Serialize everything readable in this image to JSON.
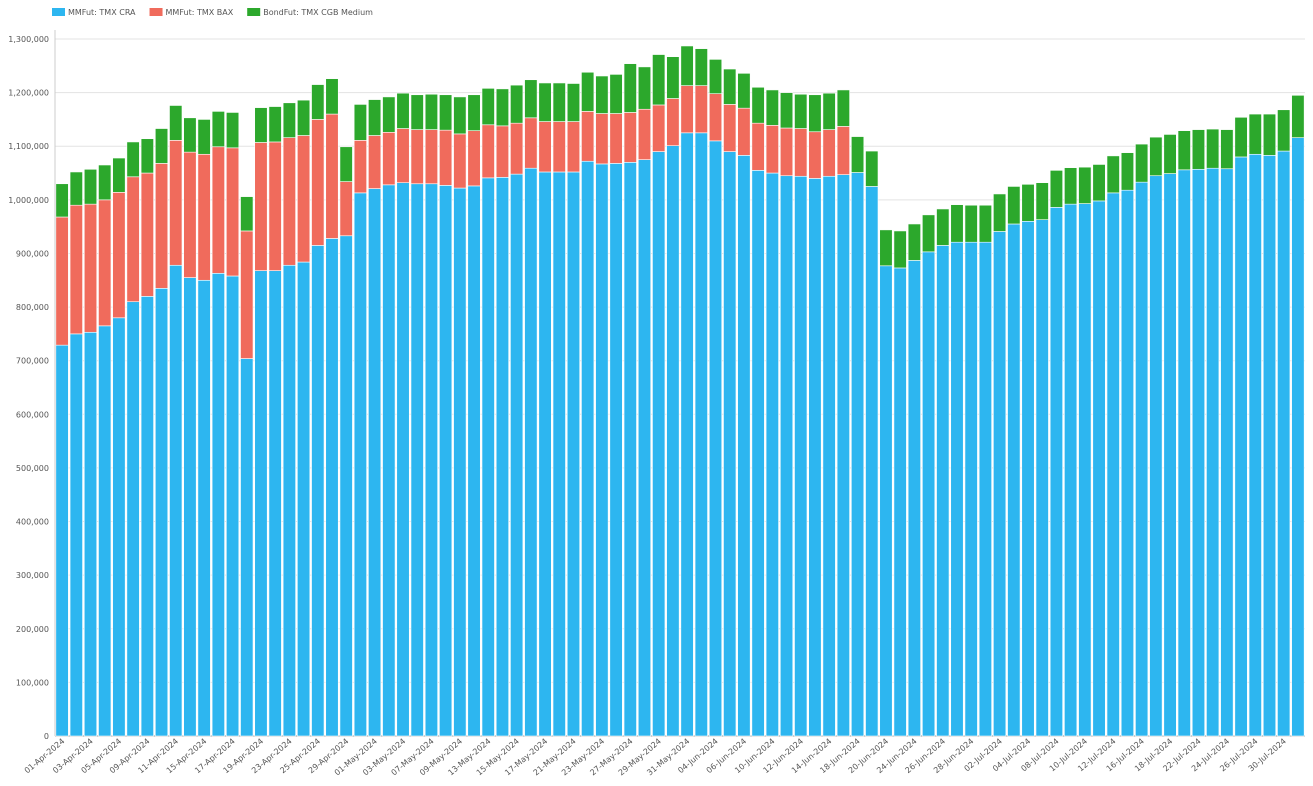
{
  "chart_data": {
    "type": "stacked-bar",
    "categories": [
      "01-Apr-2024",
      null,
      "03-Apr-2024",
      null,
      "05-Apr-2024",
      null,
      "09-Apr-2024",
      null,
      "11-Apr-2024",
      null,
      "15-Apr-2024",
      null,
      "17-Apr-2024",
      null,
      "19-Apr-2024",
      null,
      "23-Apr-2024",
      null,
      "25-Apr-2024",
      null,
      "29-Apr-2024",
      null,
      "01-May-2024",
      null,
      "03-May-2024",
      null,
      "07-May-2024",
      null,
      "09-May-2024",
      null,
      "13-May-2024",
      null,
      "15-May-2024",
      null,
      "17-May-2024",
      null,
      "21-May-2024",
      null,
      "23-May-2024",
      null,
      "27-May-2024",
      null,
      "29-May-2024",
      null,
      "31-May-2024",
      null,
      "04-Jun-2024",
      null,
      "06-Jun-2024",
      null,
      "10-Jun-2024",
      null,
      "12-Jun-2024",
      null,
      "14-Jun-2024",
      null,
      "18-Jun-2024",
      null,
      "20-Jun-2024",
      null,
      "24-Jun-2024",
      null,
      "26-Jun-2024",
      null,
      "28-Jun-2024",
      null,
      "02-Jul-2024",
      null,
      "04-Jul-2024",
      null,
      "08-Jul-2024",
      null,
      "10-Jul-2024",
      null,
      "12-Jul-2024",
      null,
      "16-Jul-2024",
      null,
      "18-Jul-2024",
      null,
      "22-Jul-2024",
      null,
      "24-Jul-2024",
      null,
      "26-Jul-2024",
      null,
      "30-Jul-2024",
      null
    ],
    "series": [
      {
        "name": "MMFut: TMX CRA",
        "color": "#2db6f0",
        "values": [
          729000,
          750000,
          753000,
          765000,
          780000,
          810000,
          820000,
          835000,
          878000,
          855000,
          850000,
          863000,
          858000,
          704000,
          868000,
          868000,
          878000,
          884000,
          915000,
          928000,
          933000,
          1013000,
          1021000,
          1028000,
          1032000,
          1030000,
          1030000,
          1027000,
          1022000,
          1026000,
          1041000,
          1042000,
          1048000,
          1059000,
          1052000,
          1052000,
          1052000,
          1072000,
          1067000,
          1068000,
          1070000,
          1075000,
          1090000,
          1101000,
          1125000,
          1125000,
          1110000,
          1090000,
          1083000,
          1055000,
          1050000,
          1045000,
          1044000,
          1040000,
          1044000,
          1047000,
          1051000,
          1025000,
          877000,
          873000,
          887000,
          903000,
          915000,
          921000,
          921000,
          921000,
          941000,
          955000,
          960000,
          963000,
          986000,
          992000,
          993000,
          998000,
          1013000,
          1018000,
          1033000,
          1045000,
          1049000,
          1056000,
          1057000,
          1059000,
          1058000,
          1080000,
          1085000,
          1083000,
          1091000,
          1116000
        ]
      },
      {
        "name": "MMFut: TMX BAX",
        "color": "#f06b5c",
        "values": [
          239000,
          240000,
          239000,
          235000,
          234000,
          233000,
          230000,
          233000,
          233000,
          234000,
          235000,
          236000,
          239000,
          238000,
          239000,
          240000,
          238000,
          236000,
          235000,
          232000,
          101000,
          98000,
          99000,
          98000,
          101000,
          101000,
          101000,
          103000,
          101000,
          103000,
          99000,
          96000,
          95000,
          94000,
          94000,
          94000,
          94000,
          93000,
          94000,
          93000,
          93000,
          94000,
          87000,
          88000,
          88000,
          88000,
          88000,
          88000,
          88000,
          88000,
          89000,
          89000,
          89000,
          87000,
          87000,
          90000,
          0,
          0,
          0,
          0,
          0,
          0,
          0,
          0,
          0,
          0,
          0,
          0,
          0,
          0,
          0,
          0,
          0,
          0,
          0,
          0,
          0,
          0,
          0,
          0,
          0,
          0,
          0,
          0,
          0,
          0,
          0,
          0
        ]
      },
      {
        "name": "BondFut: TMX CGB Medium",
        "color": "#2ca82c",
        "values": [
          62000,
          62000,
          65000,
          65000,
          64000,
          65000,
          64000,
          65000,
          65000,
          64000,
          65000,
          66000,
          66000,
          64000,
          65000,
          66000,
          65000,
          66000,
          65000,
          66000,
          65000,
          67000,
          67000,
          66000,
          66000,
          65000,
          66000,
          66000,
          69000,
          67000,
          68000,
          69000,
          71000,
          71000,
          72000,
          72000,
          71000,
          73000,
          70000,
          73000,
          91000,
          79000,
          94000,
          78000,
          74000,
          69000,
          64000,
          66000,
          65000,
          67000,
          66000,
          66000,
          64000,
          69000,
          68000,
          68000,
          67000,
          66000,
          67000,
          69000,
          68000,
          69000,
          68000,
          70000,
          69000,
          69000,
          70000,
          70000,
          69000,
          69000,
          69000,
          68000,
          68000,
          68000,
          69000,
          70000,
          71000,
          72000,
          73000,
          73000,
          74000,
          73000,
          73000,
          74000,
          75000,
          77000,
          77000,
          79000
        ]
      }
    ],
    "ylim": [
      0,
      1300000
    ],
    "yticks": [
      0,
      {
        "value": 100000,
        "label": "100,000"
      },
      {
        "value": 200000,
        "label": "200,000"
      },
      {
        "value": 300000,
        "label": "300,000"
      },
      {
        "value": 400000,
        "label": "400,000"
      },
      {
        "value": 500000,
        "label": "500,000"
      },
      {
        "value": 600000,
        "label": "600,000"
      },
      {
        "value": 700000,
        "label": "700,000"
      },
      {
        "value": 800000,
        "label": "800,000"
      },
      {
        "value": 900000,
        "label": "900,000"
      },
      {
        "value": 1000000,
        "label": "1,000,000"
      },
      {
        "value": 1100000,
        "label": "1,100,000"
      },
      {
        "value": 1200000,
        "label": "1,200,000"
      },
      {
        "value": 1300000,
        "label": "1,300,000"
      }
    ],
    "grid": true,
    "legend": "top-left"
  }
}
